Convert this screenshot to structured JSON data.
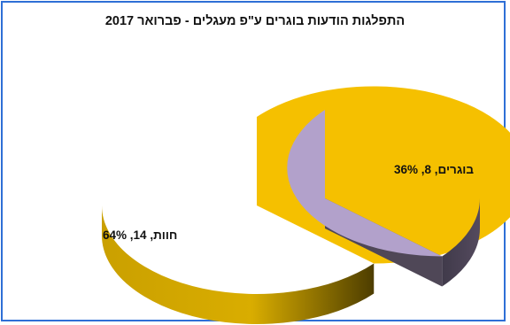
{
  "chart_data": {
    "type": "pie",
    "title": "התפלגות הודעות בוגרים ע\"פ מעגלים - פברואר 2017",
    "slices": [
      {
        "label": "בוגרים, 8, 36%",
        "value": 8,
        "percent": 36,
        "color": "#b2a1cb",
        "side_color": "#4f4757",
        "exploded": true
      },
      {
        "label": "חוות, 14, 64%",
        "value": 14,
        "percent": 64,
        "color": "#f5c000",
        "side_color": "#b68900",
        "exploded": false
      }
    ]
  }
}
